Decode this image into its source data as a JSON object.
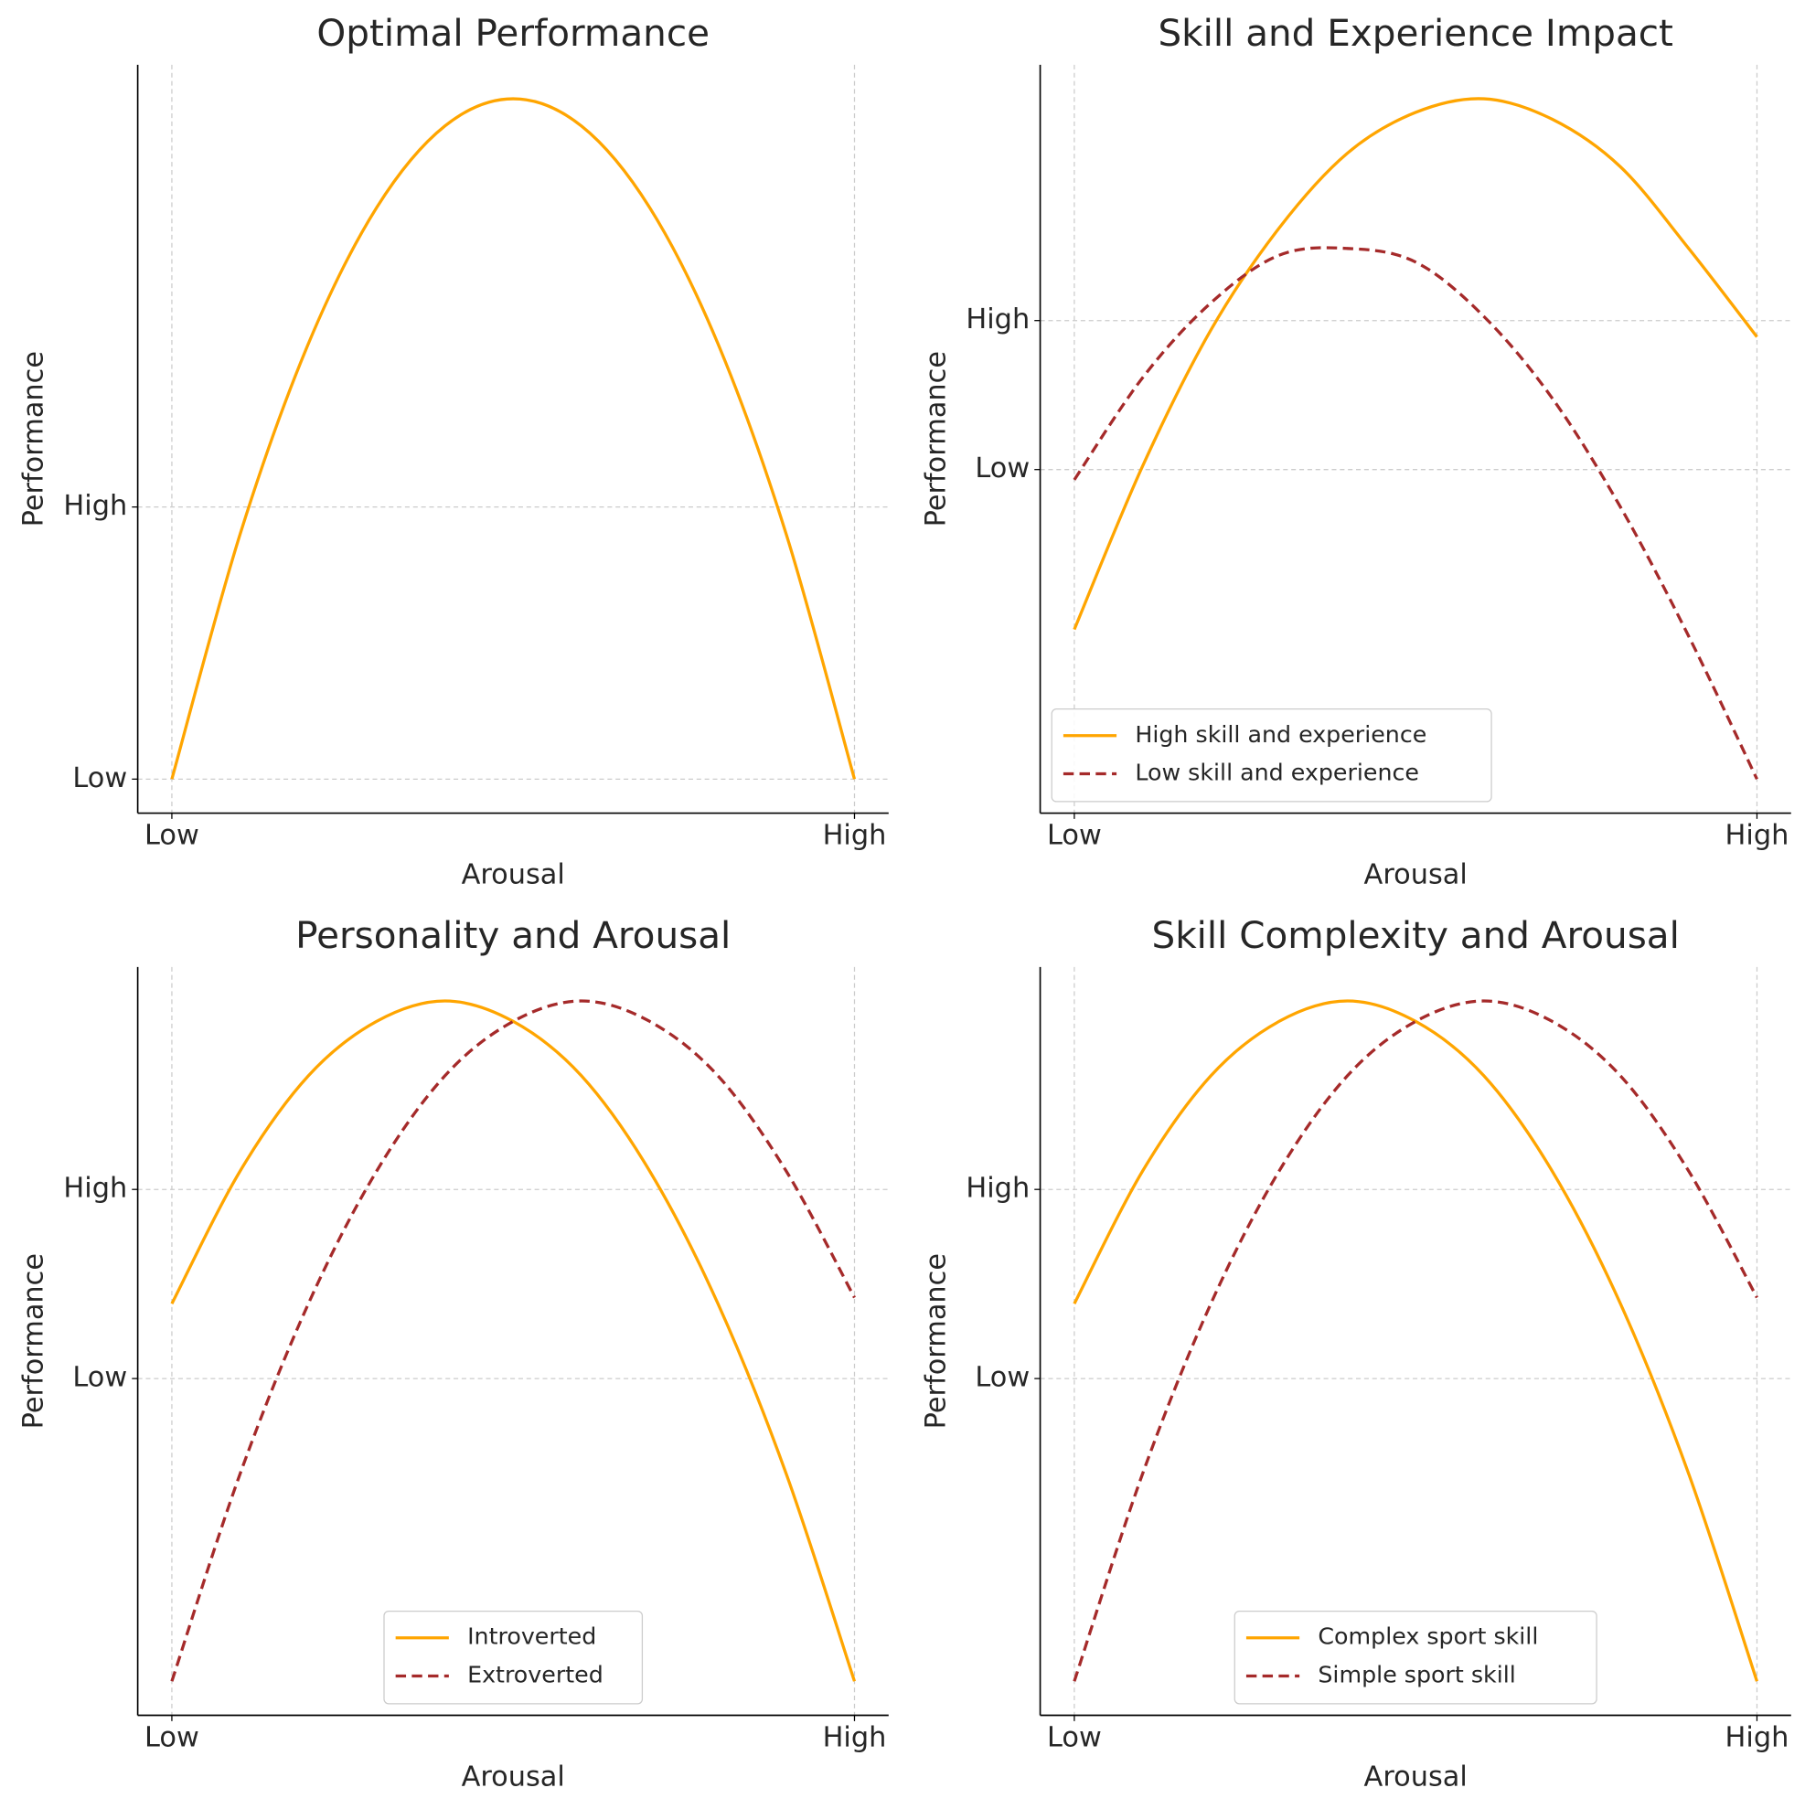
{
  "chart_data": [
    {
      "type": "line",
      "title": "Optimal Performance",
      "x_label": "Arousal",
      "y_label": "Performance",
      "x": [
        0,
        0.1,
        0.2,
        0.3,
        0.4,
        0.5,
        0.6,
        0.7,
        0.8,
        0.9,
        1
      ],
      "series": [
        {
          "name": null,
          "color": "#ffa500",
          "dash": false,
          "values": [
            0,
            0.36,
            0.64,
            0.84,
            0.96,
            1,
            0.96,
            0.84,
            0.64,
            0.36,
            0
          ]
        }
      ],
      "xlim": [
        -0.05,
        1.05
      ],
      "ylim": [
        -0.05,
        1.05
      ],
      "xticks": [
        {
          "value": 0,
          "label": "Low"
        },
        {
          "value": 1,
          "label": "High"
        }
      ],
      "yticks": [
        {
          "value": 0,
          "label": "Low"
        },
        {
          "value": 0.4,
          "label": "High"
        }
      ],
      "grid": true,
      "legend": null
    },
    {
      "type": "line",
      "title": "Skill and Experience Impact",
      "x_label": "Arousal",
      "y_label": "Performance",
      "x": [
        0,
        0.1,
        0.2,
        0.3,
        0.4,
        0.5,
        0.6,
        0.7,
        0.8,
        0.9,
        1
      ],
      "series": [
        {
          "name": "High skill and experience",
          "color": "#ffa500",
          "dash": false,
          "values": [
            0.22,
            0.46,
            0.66,
            0.81,
            0.92,
            0.98,
            1,
            0.97,
            0.9,
            0.78,
            0.65
          ]
        },
        {
          "name": "Low skill and experience",
          "color": "#a52a2a",
          "dash": true,
          "values": [
            0.44,
            0.59,
            0.7,
            0.77,
            0.78,
            0.76,
            0.68,
            0.56,
            0.4,
            0.21,
            0
          ]
        }
      ],
      "xlim": [
        -0.05,
        1.05
      ],
      "ylim": [
        -0.05,
        1.05
      ],
      "xticks": [
        {
          "value": 0,
          "label": "Low"
        },
        {
          "value": 1,
          "label": "High"
        }
      ],
      "yticks": [
        {
          "value": 0.455,
          "label": "Low"
        },
        {
          "value": 0.674,
          "label": "High"
        }
      ],
      "grid": true,
      "legend": "lower left"
    },
    {
      "type": "line",
      "title": "Personality and Arousal",
      "x_label": "Arousal",
      "y_label": "Performance",
      "x": [
        0,
        0.1,
        0.2,
        0.3,
        0.4,
        0.5,
        0.6,
        0.7,
        0.8,
        0.9,
        1
      ],
      "series": [
        {
          "name": "Introverted",
          "color": "#ffa500",
          "dash": false,
          "values": [
            0.555,
            0.75,
            0.89,
            0.97,
            1,
            0.97,
            0.89,
            0.75,
            0.555,
            0.305,
            0
          ]
        },
        {
          "name": "Extroverted",
          "color": "#a52a2a",
          "dash": true,
          "values": [
            0,
            0.305,
            0.555,
            0.75,
            0.89,
            0.97,
            1,
            0.97,
            0.89,
            0.75,
            0.564
          ]
        }
      ],
      "xlim": [
        -0.05,
        1.05
      ],
      "ylim": [
        -0.05,
        1.05
      ],
      "xticks": [
        {
          "value": 0,
          "label": "Low"
        },
        {
          "value": 1,
          "label": "High"
        }
      ],
      "yticks": [
        {
          "value": 0.445,
          "label": "Low"
        },
        {
          "value": 0.723,
          "label": "High"
        }
      ],
      "grid": true,
      "legend": "lower center"
    },
    {
      "type": "line",
      "title": "Skill Complexity and Arousal",
      "x_label": "Arousal",
      "y_label": "Performance",
      "x": [
        0,
        0.1,
        0.2,
        0.3,
        0.4,
        0.5,
        0.6,
        0.7,
        0.8,
        0.9,
        1
      ],
      "series": [
        {
          "name": "Complex sport skill",
          "color": "#ffa500",
          "dash": false,
          "values": [
            0.555,
            0.75,
            0.89,
            0.97,
            1,
            0.97,
            0.89,
            0.75,
            0.555,
            0.305,
            0
          ]
        },
        {
          "name": "Simple sport skill",
          "color": "#a52a2a",
          "dash": true,
          "values": [
            0,
            0.305,
            0.555,
            0.75,
            0.89,
            0.97,
            1,
            0.97,
            0.89,
            0.75,
            0.564
          ]
        }
      ],
      "xlim": [
        -0.05,
        1.05
      ],
      "ylim": [
        -0.05,
        1.05
      ],
      "xticks": [
        {
          "value": 0,
          "label": "Low"
        },
        {
          "value": 1,
          "label": "High"
        }
      ],
      "yticks": [
        {
          "value": 0.445,
          "label": "Low"
        },
        {
          "value": 0.723,
          "label": "High"
        }
      ],
      "grid": true,
      "legend": "lower center"
    }
  ]
}
